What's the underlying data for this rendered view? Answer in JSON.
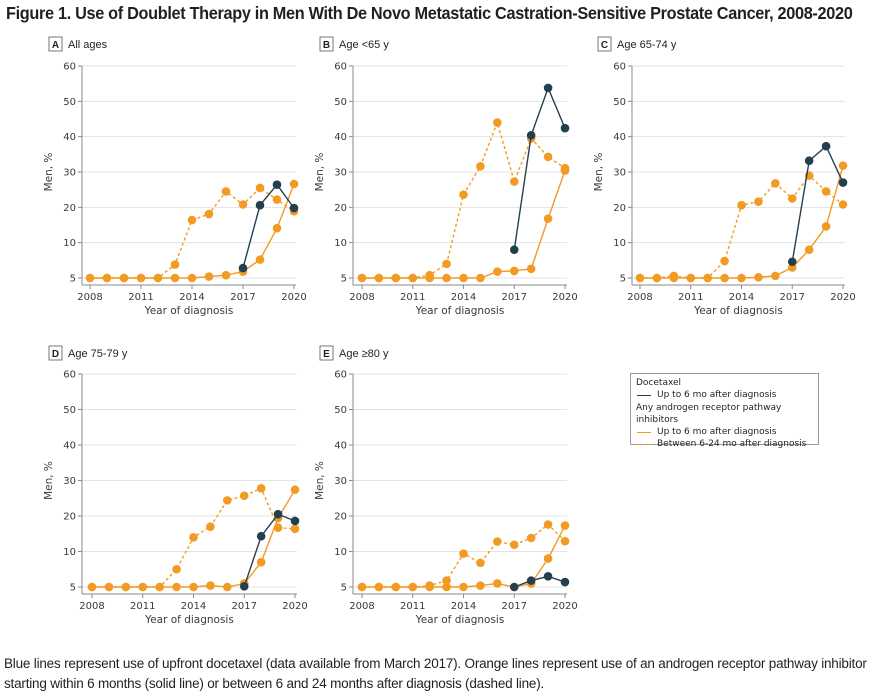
{
  "figure": {
    "title": "Figure 1.  Use of Doublet Therapy in Men With De Novo Metastatic Castration-Sensitive Prostate Cancer, 2008-2020",
    "caption": "Blue lines represent use of upfront docetaxel (data available from March 2017). Orange lines represent use of an androgen receptor pathway inhibitor starting within 6 months (solid line) or between 6 and 24 months after diagnosis (dashed line)."
  },
  "colors": {
    "docetaxel": "#24404f",
    "arpi": "#f29b24",
    "grid": "#e3e3e3",
    "axis": "#8a8a8a"
  },
  "legend": {
    "group1_title": "Docetaxel",
    "group1_item": "Up to 6 mo after diagnosis",
    "group2_title": "Any androgen receptor pathway inhibitors",
    "group2_item1": "Up to 6 mo after diagnosis",
    "group2_item2": "Between 6-24 mo after diagnosis",
    "placement": "bottom-right"
  },
  "chart_data": [
    {
      "type": "line",
      "panel": "A",
      "title": "All ages",
      "xlabel": "Year of diagnosis",
      "ylabel": "Men, %",
      "x": [
        2008,
        2009,
        2010,
        2011,
        2012,
        2013,
        2014,
        2015,
        2016,
        2017,
        2018,
        2019,
        2020
      ],
      "xticks": [
        2008,
        2011,
        2014,
        2017,
        2020
      ],
      "yticks": [
        5,
        10,
        20,
        30,
        40,
        50,
        60
      ],
      "ylim": [
        5,
        60
      ],
      "grid": true,
      "series": [
        {
          "name": "ARPI, between 6-24 mo after diagnosis",
          "style": "dashed",
          "color_key": "arpi",
          "values": [
            5,
            5,
            5,
            5,
            5,
            6.9,
            16.4,
            18.1,
            24.5,
            20.8,
            25.5,
            22.2,
            18.9
          ]
        },
        {
          "name": "ARPI, up to 6 mo after diagnosis",
          "style": "solid",
          "color_key": "arpi",
          "values": [
            5,
            5,
            5,
            5,
            5,
            5,
            5,
            5.2,
            5.4,
            5.9,
            7.6,
            14.1,
            26.6
          ]
        },
        {
          "name": "Docetaxel, up to 6 mo after diagnosis",
          "style": "solid",
          "color_key": "docetaxel",
          "values": [
            null,
            null,
            null,
            null,
            null,
            null,
            null,
            null,
            null,
            6.4,
            20.6,
            26.4,
            19.8
          ]
        }
      ]
    },
    {
      "type": "line",
      "panel": "B",
      "title": "Age <65 y",
      "xlabel": "Year of diagnosis",
      "ylabel": "Men, %",
      "x": [
        2008,
        2009,
        2010,
        2011,
        2012,
        2013,
        2014,
        2015,
        2016,
        2017,
        2018,
        2019,
        2020
      ],
      "xticks": [
        2008,
        2011,
        2014,
        2017,
        2020
      ],
      "yticks": [
        5,
        10,
        20,
        30,
        40,
        50,
        60
      ],
      "ylim": [
        5,
        60
      ],
      "grid": true,
      "series": [
        {
          "name": "ARPI, between 6-24 mo after diagnosis",
          "style": "dashed",
          "color_key": "arpi",
          "values": [
            5,
            5,
            5,
            5,
            5.4,
            7.0,
            23.6,
            31.6,
            44.0,
            27.3,
            39.5,
            34.3,
            31.1
          ]
        },
        {
          "name": "ARPI, up to 6 mo after diagnosis",
          "style": "solid",
          "color_key": "arpi",
          "values": [
            5,
            5,
            5,
            5,
            5,
            5,
            5,
            5,
            5.9,
            6.0,
            6.3,
            16.8,
            30.4
          ]
        },
        {
          "name": "Docetaxel, up to 6 mo after diagnosis",
          "style": "solid",
          "color_key": "docetaxel",
          "values": [
            null,
            null,
            null,
            null,
            null,
            null,
            null,
            null,
            null,
            9.0,
            40.4,
            53.8,
            42.4
          ]
        }
      ]
    },
    {
      "type": "line",
      "panel": "C",
      "title": "Age 65-74 y",
      "xlabel": "Year of diagnosis",
      "ylabel": "Men, %",
      "x": [
        2008,
        2009,
        2010,
        2011,
        2012,
        2013,
        2014,
        2015,
        2016,
        2017,
        2018,
        2019,
        2020
      ],
      "xticks": [
        2008,
        2011,
        2014,
        2017,
        2020
      ],
      "yticks": [
        5,
        10,
        20,
        30,
        40,
        50,
        60
      ],
      "ylim": [
        5,
        60
      ],
      "grid": true,
      "series": [
        {
          "name": "ARPI, between 6-24 mo after diagnosis",
          "style": "dashed",
          "color_key": "arpi",
          "values": [
            5,
            5,
            5.3,
            5,
            5,
            7.4,
            20.6,
            21.6,
            26.8,
            22.5,
            29.0,
            24.5,
            20.8
          ]
        },
        {
          "name": "ARPI, up to 6 mo after diagnosis",
          "style": "solid",
          "color_key": "arpi",
          "values": [
            5,
            5,
            5,
            5,
            5,
            5,
            5,
            5.1,
            5.3,
            6.5,
            9.0,
            14.6,
            31.8
          ]
        },
        {
          "name": "Docetaxel, up to 6 mo after diagnosis",
          "style": "solid",
          "color_key": "docetaxel",
          "values": [
            null,
            null,
            null,
            null,
            null,
            null,
            null,
            null,
            null,
            7.3,
            33.2,
            37.3,
            27.0
          ]
        }
      ]
    },
    {
      "type": "line",
      "panel": "D",
      "title": "Age 75-79 y",
      "xlabel": "Year of diagnosis",
      "ylabel": "Men, %",
      "x": [
        2008,
        2009,
        2010,
        2011,
        2012,
        2013,
        2014,
        2015,
        2016,
        2017,
        2018,
        2019,
        2020
      ],
      "xticks": [
        2008,
        2011,
        2014,
        2017,
        2020
      ],
      "yticks": [
        5,
        10,
        20,
        30,
        40,
        50,
        60
      ],
      "ylim": [
        5,
        60
      ],
      "grid": true,
      "series": [
        {
          "name": "ARPI, between 6-24 mo after diagnosis",
          "style": "dashed",
          "color_key": "arpi",
          "values": [
            5,
            5,
            5,
            5,
            5,
            7.5,
            14.0,
            17.0,
            24.4,
            25.7,
            27.8,
            16.7,
            16.4
          ]
        },
        {
          "name": "ARPI, up to 6 mo after diagnosis",
          "style": "solid",
          "color_key": "arpi",
          "values": [
            5,
            5,
            5,
            5,
            5,
            5,
            5,
            5.2,
            5,
            5.5,
            8.5,
            19.4,
            27.4
          ]
        },
        {
          "name": "Docetaxel, up to 6 mo after diagnosis",
          "style": "solid",
          "color_key": "docetaxel",
          "values": [
            null,
            null,
            null,
            null,
            null,
            null,
            null,
            null,
            null,
            5.1,
            14.3,
            20.5,
            18.6
          ]
        }
      ]
    },
    {
      "type": "line",
      "panel": "E",
      "title": "Age ≥80 y",
      "xlabel": "Year of diagnosis",
      "ylabel": "Men, %",
      "x": [
        2008,
        2009,
        2010,
        2011,
        2012,
        2013,
        2014,
        2015,
        2016,
        2017,
        2018,
        2019,
        2020
      ],
      "xticks": [
        2008,
        2011,
        2014,
        2017,
        2020
      ],
      "yticks": [
        5,
        10,
        20,
        30,
        40,
        50,
        60
      ],
      "ylim": [
        5,
        60
      ],
      "grid": true,
      "series": [
        {
          "name": "ARPI, between 6-24 mo after diagnosis",
          "style": "dashed",
          "color_key": "arpi",
          "values": [
            5,
            5,
            5,
            5,
            5.2,
            5.9,
            9.7,
            8.4,
            12.8,
            11.9,
            13.8,
            17.6,
            12.9
          ]
        },
        {
          "name": "ARPI, up to 6 mo after diagnosis",
          "style": "solid",
          "color_key": "arpi",
          "values": [
            5,
            5,
            5,
            5,
            5,
            5,
            5,
            5.2,
            5.5,
            5.0,
            5.5,
            9.0,
            17.3
          ]
        },
        {
          "name": "Docetaxel, up to 6 mo after diagnosis",
          "style": "solid",
          "color_key": "docetaxel",
          "values": [
            null,
            null,
            null,
            null,
            null,
            null,
            null,
            null,
            null,
            5.0,
            5.9,
            6.5,
            5.7
          ]
        }
      ]
    }
  ]
}
